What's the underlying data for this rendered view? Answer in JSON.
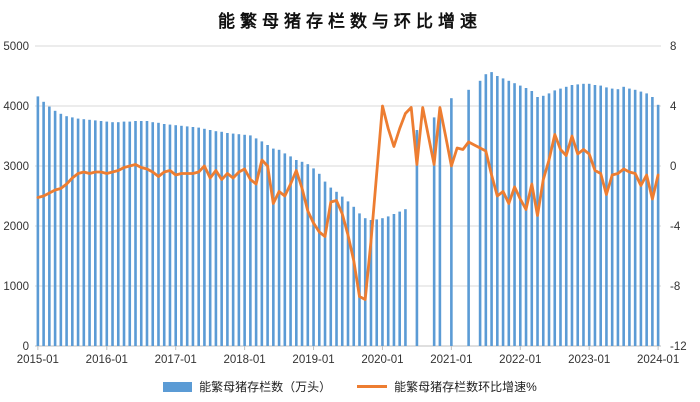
{
  "title": "能繁母猪存栏数与环比增速",
  "colors": {
    "bar": "#5B9BD5",
    "line": "#ED7D31",
    "grid": "#D9D9D9",
    "axis": "#BFBFBF",
    "text": "#333333"
  },
  "legend": {
    "bar_label": "能繁母猪存栏数（万头）",
    "line_label": "能繁母猪存栏数环比增速%"
  },
  "chart_data": {
    "type": "bar+line",
    "title": "能繁母猪存栏数与环比增速",
    "x_start": "2015-01",
    "x_end": "2024-01",
    "x_tick_labels": [
      "2015-01",
      "2016-01",
      "2017-01",
      "2018-01",
      "2019-01",
      "2020-01",
      "2021-01",
      "2022-01",
      "2023-01",
      "2024-01"
    ],
    "left_axis": {
      "min": 0,
      "max": 5000,
      "step": 1000,
      "tick_labels": [
        "0",
        "1000",
        "2000",
        "3000",
        "4000",
        "5000"
      ]
    },
    "right_axis": {
      "min": -12,
      "max": 8,
      "step": 4,
      "tick_labels": [
        "-12",
        "-8",
        "-4",
        "0",
        "4",
        "8"
      ]
    },
    "grid": true,
    "legend_position": "bottom",
    "series": [
      {
        "name": "能繁母猪存栏数（万头）",
        "type": "bar",
        "axis": "left",
        "values": [
          4160,
          4070,
          3990,
          3920,
          3870,
          3830,
          3810,
          3790,
          3780,
          3770,
          3760,
          3750,
          3740,
          3730,
          3730,
          3740,
          3740,
          3750,
          3750,
          3750,
          3730,
          3720,
          3700,
          3690,
          3680,
          3670,
          3660,
          3650,
          3640,
          3620,
          3600,
          3580,
          3570,
          3550,
          3540,
          3530,
          3520,
          3510,
          3460,
          3410,
          3350,
          3290,
          3270,
          3210,
          3160,
          3100,
          3070,
          3030,
          2960,
          2870,
          2740,
          2640,
          2570,
          2490,
          2410,
          2320,
          2210,
          2130,
          2100,
          2110,
          2130,
          2160,
          2200,
          2240,
          2280,
          null,
          3600,
          null,
          null,
          3810,
          3960,
          null,
          4130,
          null,
          null,
          4270,
          null,
          4420,
          4530,
          4565,
          4500,
          4460,
          4420,
          4380,
          4340,
          4300,
          4250,
          4150,
          4170,
          4210,
          4260,
          4290,
          4320,
          4350,
          4360,
          4370,
          4370,
          4350,
          4340,
          4310,
          4290,
          4280,
          4320,
          4290,
          4270,
          4240,
          4210,
          4150,
          4020
        ]
      },
      {
        "name": "能繁母猪存栏数环比增速%",
        "type": "line",
        "axis": "right",
        "values": [
          -2.1,
          -2.0,
          -1.8,
          -1.6,
          -1.5,
          -1.2,
          -0.8,
          -0.5,
          -0.4,
          -0.5,
          -0.4,
          -0.4,
          -0.5,
          -0.4,
          -0.3,
          -0.1,
          0.0,
          0.1,
          -0.1,
          -0.2,
          -0.4,
          -0.7,
          -0.4,
          -0.3,
          -0.6,
          -0.5,
          -0.5,
          -0.5,
          -0.4,
          0.0,
          -0.8,
          -0.3,
          -0.9,
          -0.5,
          -0.8,
          -0.4,
          -0.2,
          -0.9,
          -1.2,
          0.4,
          0.0,
          -2.5,
          -1.7,
          -2.0,
          -1.2,
          -0.3,
          -1.5,
          -3.0,
          -3.8,
          -4.4,
          -4.7,
          -2.4,
          -2.3,
          -3.2,
          -4.6,
          -6.3,
          -8.7,
          -8.9,
          -5.0,
          -0.5,
          4.0,
          2.5,
          1.3,
          2.5,
          3.5,
          3.9,
          0.1,
          3.9,
          2.0,
          0.1,
          3.9,
          2.0,
          0.0,
          1.2,
          1.1,
          1.6,
          1.4,
          1.2,
          1.0,
          -0.6,
          -2.0,
          -1.7,
          -2.5,
          -1.4,
          -2.2,
          -2.9,
          -1.2,
          -3.3,
          -0.9,
          0.4,
          2.1,
          1.1,
          0.7,
          2.0,
          0.8,
          1.1,
          0.8,
          -0.3,
          -0.5,
          -1.9,
          -0.6,
          -0.5,
          -0.2,
          -0.4,
          -0.5,
          -1.3,
          -0.6,
          -2.2,
          -0.6
        ]
      }
    ]
  }
}
